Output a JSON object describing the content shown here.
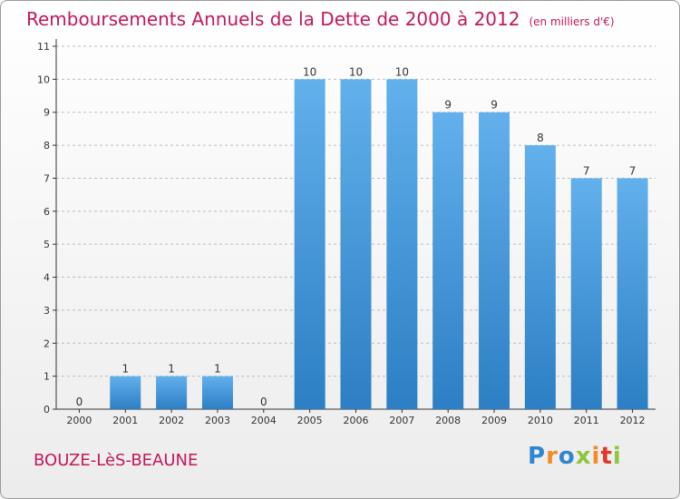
{
  "title": "Remboursements Annuels de la Dette de 2000 à 2012",
  "unit": "(en milliers d'€)",
  "place": "BOUZE-LèS-BEAUNE",
  "logo": {
    "letters": [
      "P",
      "r",
      "o",
      "x",
      "i",
      "t",
      "i"
    ],
    "colors": [
      "#2e86d1",
      "#f28c28",
      "#2e86d1",
      "#8dc63f",
      "#f28c28",
      "#e2372b",
      "#8dc63f"
    ]
  },
  "colors": {
    "bar_top": "#62b0ec",
    "bar_bottom": "#2c7fc4",
    "axis": "#333333",
    "grid": "#bdbdbd",
    "text": "#333333"
  },
  "chart_data": {
    "type": "bar",
    "categories": [
      "2000",
      "2001",
      "2002",
      "2003",
      "2004",
      "2005",
      "2006",
      "2007",
      "2008",
      "2009",
      "2010",
      "2011",
      "2012"
    ],
    "values": [
      0,
      1,
      1,
      1,
      0,
      10,
      10,
      10,
      9,
      9,
      8,
      7,
      7
    ],
    "data_labels": [
      "0",
      "1",
      "1",
      "1",
      "0",
      "10",
      "10",
      "10",
      "9",
      "9",
      "8",
      "7",
      "7"
    ],
    "yticks": [
      "0",
      "1",
      "2",
      "3",
      "4",
      "5",
      "6",
      "7",
      "8",
      "9",
      "10",
      "11"
    ],
    "ylim": [
      0,
      11
    ],
    "grid": true
  }
}
